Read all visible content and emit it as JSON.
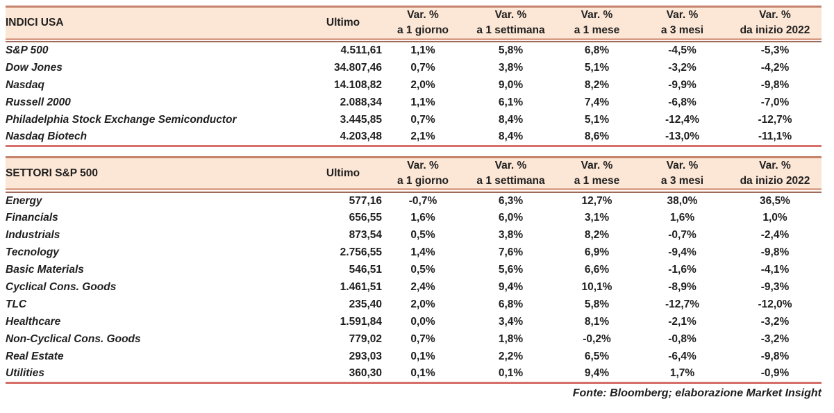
{
  "colors": {
    "header_bg": "#fce6d5",
    "top_rule": "#c5816a",
    "salmon_rule": "#cd8166",
    "brown_rule": "#9f6a5b",
    "red_rule": "#d5706b",
    "text": "#1f1f1f"
  },
  "ultimo_label": "Ultimo",
  "var_header_top": "Var. %",
  "periods": [
    "a 1 giorno",
    "a 1 settimana",
    "a 1 mese",
    "a 3 mesi",
    "da inizio 2022"
  ],
  "tables": [
    {
      "title": "INDICI USA",
      "rows": [
        {
          "name": "S&P 500",
          "ultimo": "4.511,61",
          "var": [
            "1,1%",
            "5,8%",
            "6,8%",
            "-4,5%",
            "-5,3%"
          ]
        },
        {
          "name": "Dow Jones",
          "ultimo": "34.807,46",
          "var": [
            "0,7%",
            "3,8%",
            "5,1%",
            "-3,2%",
            "-4,2%"
          ]
        },
        {
          "name": "Nasdaq",
          "ultimo": "14.108,82",
          "var": [
            "2,0%",
            "9,0%",
            "8,2%",
            "-9,9%",
            "-9,8%"
          ]
        },
        {
          "name": "Russell 2000",
          "ultimo": "2.088,34",
          "var": [
            "1,1%",
            "6,1%",
            "7,4%",
            "-6,8%",
            "-7,0%"
          ]
        },
        {
          "name": "Philadelphia Stock Exchange Semiconductor",
          "ultimo": "3.445,85",
          "var": [
            "0,7%",
            "8,4%",
            "5,1%",
            "-12,4%",
            "-12,7%"
          ]
        },
        {
          "name": "Nasdaq Biotech",
          "ultimo": "4.203,48",
          "var": [
            "2,1%",
            "8,4%",
            "8,6%",
            "-13,0%",
            "-11,1%"
          ]
        }
      ]
    },
    {
      "title": "SETTORI S&P 500",
      "rows": [
        {
          "name": "Energy",
          "ultimo": "577,16",
          "var": [
            "-0,7%",
            "6,3%",
            "12,7%",
            "38,0%",
            "36,5%"
          ]
        },
        {
          "name": "Financials",
          "ultimo": "656,55",
          "var": [
            "1,6%",
            "6,0%",
            "3,1%",
            "1,6%",
            "1,0%"
          ]
        },
        {
          "name": "Industrials",
          "ultimo": "873,54",
          "var": [
            "0,5%",
            "3,8%",
            "8,2%",
            "-0,7%",
            "-2,4%"
          ]
        },
        {
          "name": "Tecnology",
          "ultimo": "2.756,55",
          "var": [
            "1,4%",
            "7,6%",
            "6,9%",
            "-9,4%",
            "-9,8%"
          ]
        },
        {
          "name": "Basic Materials",
          "ultimo": "546,51",
          "var": [
            "0,5%",
            "5,6%",
            "6,6%",
            "-1,6%",
            "-4,1%"
          ]
        },
        {
          "name": "Cyclical Cons. Goods",
          "ultimo": "1.461,51",
          "var": [
            "2,4%",
            "9,4%",
            "10,1%",
            "-8,9%",
            "-9,3%"
          ]
        },
        {
          "name": "TLC",
          "ultimo": "235,40",
          "var": [
            "2,0%",
            "6,8%",
            "5,8%",
            "-12,7%",
            "-12,0%"
          ]
        },
        {
          "name": "Healthcare",
          "ultimo": "1.591,84",
          "var": [
            "0,0%",
            "3,4%",
            "8,1%",
            "-2,1%",
            "-3,2%"
          ]
        },
        {
          "name": "Non-Cyclical Cons. Goods",
          "ultimo": "779,02",
          "var": [
            "0,7%",
            "1,8%",
            "-0,2%",
            "-0,8%",
            "-3,2%"
          ]
        },
        {
          "name": "Real Estate",
          "ultimo": "293,03",
          "var": [
            "0,1%",
            "2,2%",
            "6,5%",
            "-6,4%",
            "-9,8%"
          ]
        },
        {
          "name": "Utilities",
          "ultimo": "360,30",
          "var": [
            "0,1%",
            "0,1%",
            "9,4%",
            "1,7%",
            "-0,9%"
          ]
        }
      ]
    }
  ],
  "footer": {
    "text": "Fonte: Bloomberg; elaborazione Market Insight"
  }
}
